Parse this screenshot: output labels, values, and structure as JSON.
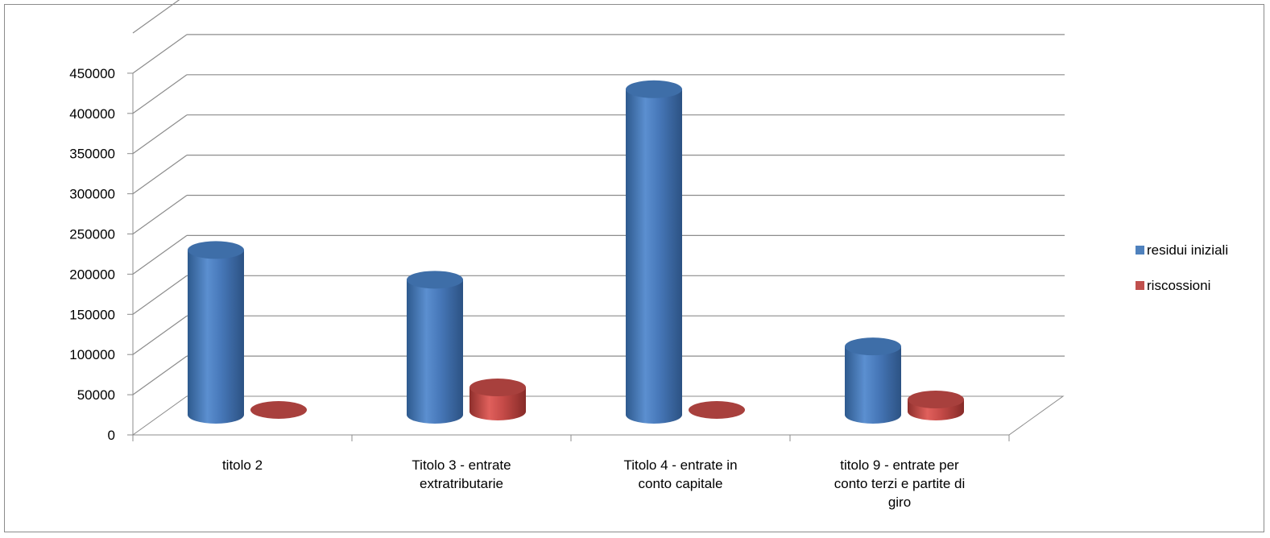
{
  "chart_data": {
    "type": "bar",
    "subtype": "3d-cylinder",
    "title": "",
    "xlabel": "",
    "ylabel": "",
    "ylim": [
      0,
      450000
    ],
    "ytick_step": 50000,
    "yticks": [
      "0",
      "50000",
      "100000",
      "150000",
      "200000",
      "250000",
      "300000",
      "350000",
      "400000",
      "450000"
    ],
    "grid": true,
    "legend_position": "right",
    "categories": [
      [
        "titolo 2"
      ],
      [
        "Titolo 3 - entrate",
        "extratributarie"
      ],
      [
        "Titolo 4 - entrate in",
        "conto capitale"
      ],
      [
        "titolo 9 - entrate per",
        "conto terzi e partite di",
        "giro"
      ]
    ],
    "series": [
      {
        "name": "residui iniziali",
        "color": "#4f81bd",
        "values": [
          205000,
          168000,
          405000,
          85000
        ]
      },
      {
        "name": "riscossioni",
        "color": "#c0504d",
        "values": [
          2000,
          30000,
          2000,
          15000
        ]
      }
    ]
  }
}
